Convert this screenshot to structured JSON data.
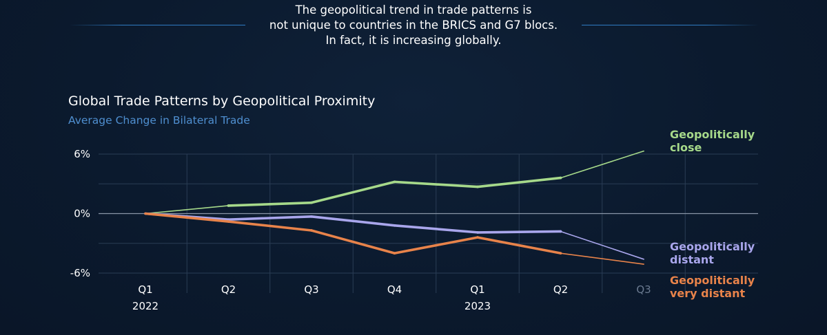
{
  "intro": {
    "line1": "The geopolitical trend in trade patterns is",
    "line2": "not unique to countries in the BRICS and G7 blocs.",
    "line3": "In fact, it is increasing globally."
  },
  "colors": {
    "background": "#0b1a2e",
    "accent_rule": "#2f7cc4",
    "subtitle": "#4f8fd0",
    "close": "#a6d98a",
    "distant": "#a9a6ec",
    "very_distant": "#e8834a",
    "grid": "#2a3d55",
    "zero_line": "#8a96a8"
  },
  "chart_data": {
    "type": "line",
    "title": "Global Trade Patterns by Geopolitical Proximity",
    "subtitle": "Average Change in Bilateral Trade",
    "xlabel": "",
    "ylabel": "",
    "ylim": [
      -6,
      6
    ],
    "yticks": [
      "6%",
      "0%",
      "-6%"
    ],
    "ytick_values": [
      6,
      0,
      -6
    ],
    "categories": [
      "Q1",
      "Q2",
      "Q3",
      "Q4",
      "Q1",
      "Q2",
      "Q3"
    ],
    "years": [
      {
        "label": "2022",
        "index": 0
      },
      {
        "label": "2023",
        "index": 4
      }
    ],
    "projected_from_index": 6,
    "grid": true,
    "legend": "inline-right",
    "series": [
      {
        "name": "Geopolitically close",
        "color": "#a6d98a",
        "values": [
          0.0,
          0.8,
          1.1,
          3.2,
          2.7,
          3.6,
          6.3
        ]
      },
      {
        "name": "Geopolitically distant",
        "color": "#a9a6ec",
        "values": [
          0.0,
          -0.6,
          -0.3,
          -1.2,
          -1.9,
          -1.8,
          -4.6
        ]
      },
      {
        "name": "Geopolitically very distant",
        "color": "#e8834a",
        "values": [
          0.0,
          -0.8,
          -1.7,
          -4.0,
          -2.4,
          -4.0,
          -5.1
        ]
      }
    ],
    "series_labels": [
      {
        "line1": "Geopolitically",
        "line2": "close"
      },
      {
        "line1": "Geopolitically",
        "line2": "distant"
      },
      {
        "line1": "Geopolitically",
        "line2": "very distant"
      }
    ]
  }
}
